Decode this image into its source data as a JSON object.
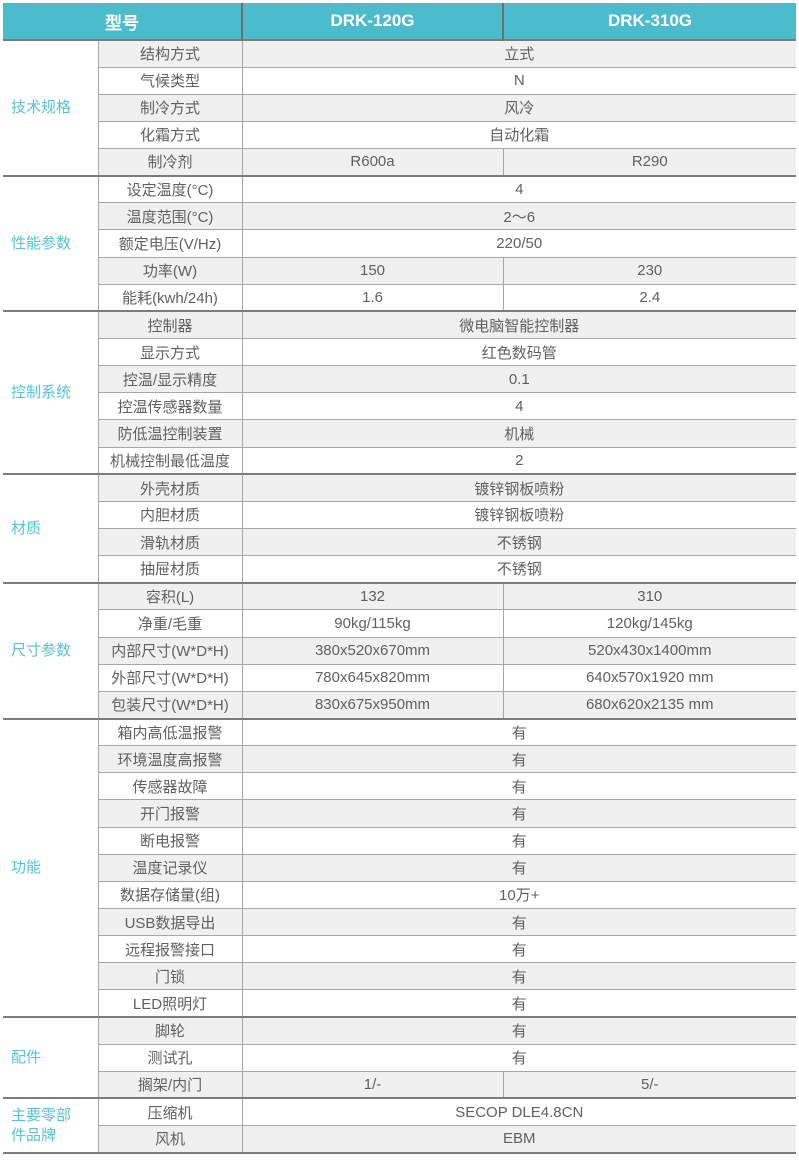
{
  "colors": {
    "header_bg": "#4bbccb",
    "header_text": "#ffffff",
    "category_text": "#57c3d3",
    "body_text": "#606062",
    "stripe": "#f0f0f1",
    "grid_line": "#a6a6a6",
    "section_line": "#7c7c7c"
  },
  "header": {
    "model_label": "型号",
    "models": [
      "DRK-120G",
      "DRK-310G"
    ]
  },
  "sections": [
    {
      "category": "技术规格",
      "rows": [
        {
          "label": "结构方式",
          "value": "立式"
        },
        {
          "label": "气候类型",
          "value": "N"
        },
        {
          "label": "制冷方式",
          "value": "风冷"
        },
        {
          "label": "化霜方式",
          "value": "自动化霜"
        },
        {
          "label": "制冷剂",
          "values": [
            "R600a",
            "R290"
          ]
        }
      ]
    },
    {
      "category": "性能参数",
      "rows": [
        {
          "label": "设定温度(°C)",
          "value": "4"
        },
        {
          "label": "温度范围(°C)",
          "value": "2～6"
        },
        {
          "label": "额定电压(V/Hz)",
          "value": "220/50"
        },
        {
          "label": "功率(W)",
          "values": [
            "150",
            "230"
          ]
        },
        {
          "label": "能耗(kwh/24h)",
          "values": [
            "1.6",
            "2.4"
          ]
        }
      ]
    },
    {
      "category": "控制系统",
      "rows": [
        {
          "label": "控制器",
          "value": "微电脑智能控制器"
        },
        {
          "label": "显示方式",
          "value": "红色数码管"
        },
        {
          "label": "控温/显示精度",
          "value": "0.1"
        },
        {
          "label": "控温传感器数量",
          "value": "4"
        },
        {
          "label": "防低温控制装置",
          "value": "机械"
        },
        {
          "label": "机械控制最低温度",
          "value": "2"
        }
      ]
    },
    {
      "category": "材质",
      "rows": [
        {
          "label": "外壳材质",
          "value": "镀锌钢板喷粉"
        },
        {
          "label": "内胆材质",
          "value": "镀锌钢板喷粉"
        },
        {
          "label": "滑轨材质",
          "value": "不锈钢"
        },
        {
          "label": "抽屉材质",
          "value": "不锈钢"
        }
      ]
    },
    {
      "category": "尺寸参数",
      "rows": [
        {
          "label": "容积(L)",
          "values": [
            "132",
            "310"
          ]
        },
        {
          "label": "净重/毛重",
          "values": [
            "90kg/115kg",
            "120kg/145kg"
          ]
        },
        {
          "label": "内部尺寸(W*D*H)",
          "values": [
            "380x520x670mm",
            "520x430x1400mm"
          ]
        },
        {
          "label": "外部尺寸(W*D*H)",
          "values": [
            "780x645x820mm",
            "640x570x1920 mm"
          ]
        },
        {
          "label": "包装尺寸(W*D*H)",
          "values": [
            "830x675x950mm",
            "680x620x2135 mm"
          ]
        }
      ]
    },
    {
      "category": "功能",
      "rows": [
        {
          "label": "箱内高低温报警",
          "value": "有"
        },
        {
          "label": "环境温度高报警",
          "value": "有"
        },
        {
          "label": "传感器故障",
          "value": "有"
        },
        {
          "label": "开门报警",
          "value": "有"
        },
        {
          "label": "断电报警",
          "value": "有"
        },
        {
          "label": "温度记录仪",
          "value": "有"
        },
        {
          "label": "数据存储量(组)",
          "value": "10万+"
        },
        {
          "label": "USB数据导出",
          "value": "有"
        },
        {
          "label": "远程报警接口",
          "value": "有"
        },
        {
          "label": "门锁",
          "value": "有"
        },
        {
          "label": "LED照明灯",
          "value": "有"
        }
      ]
    },
    {
      "category": "配件",
      "rows": [
        {
          "label": "脚轮",
          "value": "有"
        },
        {
          "label": "测试孔",
          "value": "有"
        },
        {
          "label": "搁架/内门",
          "values": [
            "1/-",
            "5/-"
          ]
        }
      ]
    },
    {
      "category": "主要零部件品牌",
      "rows": [
        {
          "label": "压缩机",
          "value": "SECOP DLE4.8CN"
        },
        {
          "label": "风机",
          "value": "EBM"
        }
      ]
    }
  ]
}
